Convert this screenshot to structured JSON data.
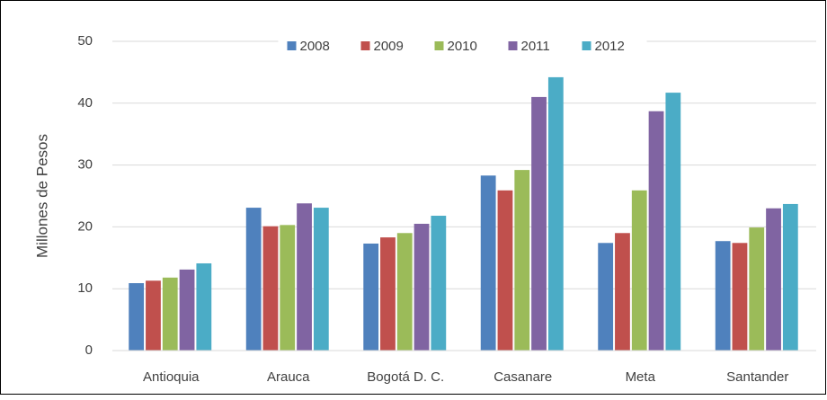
{
  "chart_data": {
    "type": "bar",
    "ylabel": "Millones de Pesos",
    "categories": [
      "Antioquia",
      "Arauca",
      "Bogotá D. C.",
      "Casanare",
      "Meta",
      "Santander"
    ],
    "series": [
      {
        "name": "2008",
        "color": "#4f81bd",
        "values": [
          10.9,
          23.1,
          17.3,
          28.3,
          17.4,
          17.7
        ]
      },
      {
        "name": "2009",
        "color": "#c0504d",
        "values": [
          11.3,
          20.1,
          18.3,
          25.9,
          19.0,
          17.4
        ]
      },
      {
        "name": "2010",
        "color": "#9bbb59",
        "values": [
          11.8,
          20.3,
          19.0,
          29.2,
          25.9,
          19.9
        ]
      },
      {
        "name": "2011",
        "color": "#8064a2",
        "values": [
          13.1,
          23.8,
          20.5,
          41.0,
          38.7,
          23.0
        ]
      },
      {
        "name": "2012",
        "color": "#4bacc6",
        "values": [
          14.1,
          23.1,
          21.8,
          44.2,
          41.7,
          23.7
        ]
      }
    ],
    "ylim": [
      0,
      50
    ],
    "yticks": [
      0,
      10,
      20,
      30,
      40,
      50
    ],
    "grid": true,
    "legend": "top"
  }
}
